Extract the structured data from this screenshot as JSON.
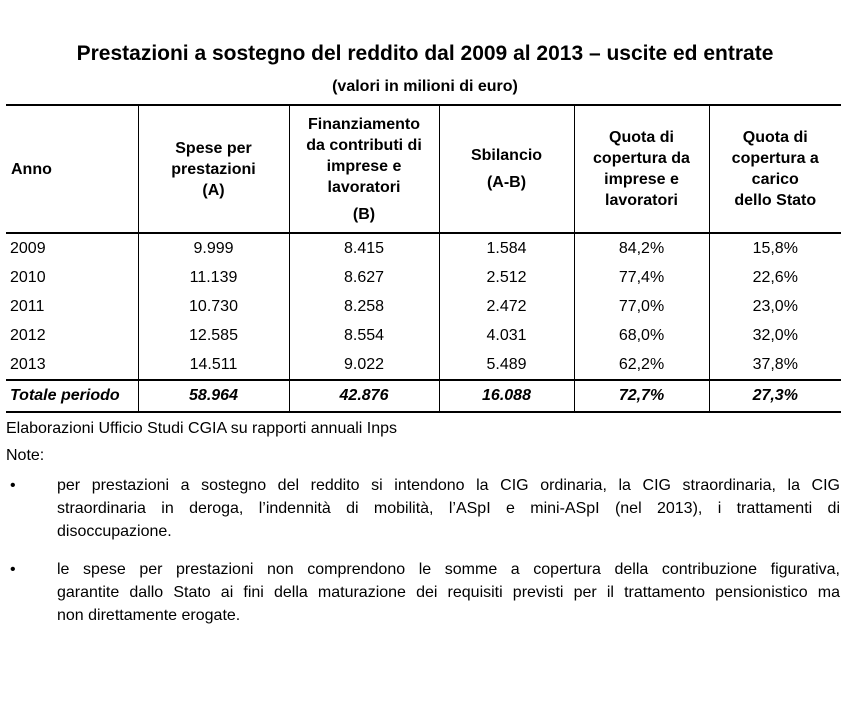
{
  "title": "Prestazioni a sostegno del reddito dal 2009 al 2013 – uscite ed entrate",
  "subtitle": "(valori in milioni di euro)",
  "table": {
    "headers": [
      {
        "lines": [
          "Anno"
        ],
        "gap_line": ""
      },
      {
        "lines": [
          "Spese per",
          "prestazioni"
        ],
        "gap_line": "(A)"
      },
      {
        "lines": [
          "Finanziamento",
          "da contributi di",
          "imprese e",
          "lavoratori"
        ],
        "gap_line": "(B)"
      },
      {
        "lines": [
          "Sbilancio"
        ],
        "gap_line": "(A-B)"
      },
      {
        "lines": [
          "Quota di",
          "copertura da",
          "imprese e",
          "lavoratori"
        ],
        "gap_line": ""
      },
      {
        "lines": [
          "Quota di",
          "copertura a",
          "carico",
          "dello Stato"
        ],
        "gap_line": ""
      }
    ],
    "rows": [
      [
        "2009",
        "9.999",
        "8.415",
        "1.584",
        "84,2%",
        "15,8%"
      ],
      [
        "2010",
        "11.139",
        "8.627",
        "2.512",
        "77,4%",
        "22,6%"
      ],
      [
        "2011",
        "10.730",
        "8.258",
        "2.472",
        "77,0%",
        "23,0%"
      ],
      [
        "2012",
        "12.585",
        "8.554",
        "4.031",
        "68,0%",
        "32,0%"
      ],
      [
        "2013",
        "14.511",
        "9.022",
        "5.489",
        "62,2%",
        "37,8%"
      ]
    ],
    "total": [
      "Totale periodo",
      "58.964",
      "42.876",
      "16.088",
      "72,7%",
      "27,3%"
    ]
  },
  "source": "Elaborazioni Ufficio Studi CGIA su rapporti annuali Inps",
  "notes_label": "Note:",
  "notes": [
    {
      "bullet": "•",
      "lines": [
        "per prestazioni a sostegno del reddito si intendono la CIG ordinaria, la CIG straordinaria, la CIG",
        "straordinaria in deroga, l’indennità di mobilità, l’ASpI e mini-ASpI (nel 2013), i trattamenti di",
        "disoccupazione."
      ]
    },
    {
      "bullet": "•",
      "lines": [
        "le spese per prestazioni non comprendono le somme a copertura della contribuzione figurativa,",
        "garantite dallo Stato ai fini della maturazione dei requisiti previsti per il trattamento pensionistico ma",
        "non direttamente erogate."
      ]
    }
  ]
}
